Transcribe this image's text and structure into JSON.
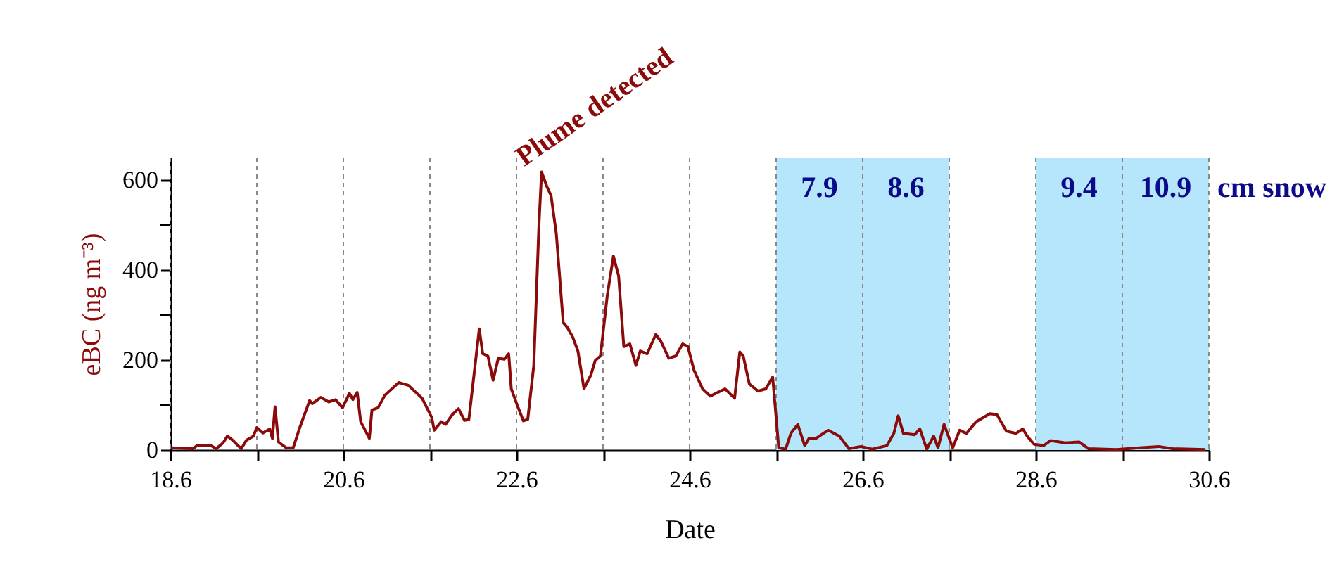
{
  "chart_data": {
    "type": "line",
    "xlabel": "Date",
    "ylabel": "eBC (ng m⁻³)",
    "xlim": [
      18.6,
      30.6
    ],
    "ylim": [
      0,
      650
    ],
    "xticks": [
      18.6,
      {
        "value": 19.6,
        "label": null
      },
      20.6,
      {
        "value": 21.6,
        "label": null
      },
      22.6,
      {
        "value": 23.6,
        "label": null
      },
      24.6,
      {
        "value": 25.6,
        "label": null
      },
      26.6,
      {
        "value": 27.6,
        "label": null
      },
      28.6,
      {
        "value": 29.6,
        "label": null
      },
      30.6
    ],
    "yticks": [
      0,
      {
        "value": 100,
        "label": null
      },
      200,
      {
        "value": 300,
        "label": null
      },
      400,
      {
        "value": 500,
        "label": null
      },
      600
    ],
    "grid": "x",
    "marker": "none",
    "line_style": "solid",
    "series": [
      {
        "color": "#8b0a0a",
        "x": [
          18.61,
          18.86,
          18.91,
          19.07,
          19.13,
          19.21,
          19.26,
          19.32,
          19.42,
          19.48,
          19.56,
          19.6,
          19.67,
          19.75,
          19.78,
          19.81,
          19.85,
          19.94,
          20.02,
          20.1,
          20.21,
          20.24,
          20.34,
          20.43,
          20.51,
          20.59,
          20.67,
          20.71,
          20.76,
          20.8,
          20.9,
          20.93,
          21.0,
          21.08,
          21.24,
          21.35,
          21.51,
          21.62,
          21.65,
          21.73,
          21.78,
          21.86,
          21.93,
          22.0,
          22.05,
          22.17,
          22.21,
          22.27,
          22.33,
          22.39,
          22.46,
          22.51,
          22.54,
          22.62,
          22.68,
          22.73,
          22.8,
          22.86,
          22.89,
          22.95,
          23.0,
          23.06,
          23.14,
          23.19,
          23.25,
          23.31,
          23.38,
          23.46,
          23.51,
          23.57,
          23.65,
          23.72,
          23.78,
          23.84,
          23.91,
          23.98,
          24.03,
          24.11,
          24.21,
          24.27,
          24.36,
          24.44,
          24.52,
          24.58,
          24.65,
          24.75,
          24.84,
          25.01,
          25.12,
          25.18,
          25.22,
          25.29,
          25.39,
          25.48,
          25.56,
          25.63,
          25.71,
          25.77,
          25.85,
          25.93,
          25.98,
          26.06,
          26.2,
          26.33,
          26.44,
          26.58,
          26.71,
          26.88,
          26.96,
          27.01,
          27.07,
          27.2,
          27.26,
          27.34,
          27.42,
          27.47,
          27.54,
          27.64,
          27.72,
          27.8,
          27.91,
          28.07,
          28.15,
          28.26,
          28.37,
          28.45,
          28.5,
          28.58,
          28.69,
          28.77,
          28.94,
          29.1,
          29.21,
          29.53,
          29.8,
          30.02,
          30.18,
          30.56
        ],
        "values": [
          5,
          3,
          10,
          10,
          3,
          16,
          31,
          22,
          3,
          22,
          31,
          50,
          38,
          47,
          26,
          96,
          18,
          5,
          5,
          52,
          110,
          103,
          117,
          107,
          112,
          94,
          126,
          112,
          128,
          63,
          26,
          89,
          94,
          122,
          150,
          144,
          115,
          73,
          44,
          63,
          57,
          79,
          92,
          66,
          68,
          269,
          214,
          209,
          155,
          204,
          202,
          214,
          136,
          94,
          65,
          68,
          188,
          502,
          618,
          586,
          565,
          481,
          283,
          272,
          251,
          220,
          136,
          167,
          199,
          209,
          345,
          431,
          387,
          230,
          236,
          188,
          220,
          214,
          257,
          241,
          204,
          209,
          236,
          230,
          178,
          136,
          120,
          136,
          115,
          218,
          209,
          147,
          131,
          136,
          162,
          5,
          2,
          37,
          57,
          10,
          26,
          26,
          44,
          31,
          3,
          8,
          2,
          10,
          37,
          76,
          37,
          34,
          47,
          2,
          31,
          5,
          57,
          5,
          44,
          37,
          63,
          81,
          79,
          42,
          37,
          47,
          31,
          13,
          10,
          21,
          16,
          18,
          3,
          1,
          5,
          8,
          3,
          1
        ]
      }
    ],
    "bands": [
      {
        "axis": "x",
        "from": 25.6,
        "to": 26.6,
        "label": "7.9",
        "color": "#b6e6fb"
      },
      {
        "axis": "x",
        "from": 26.6,
        "to": 27.6,
        "label": "8.6",
        "color": "#b6e6fb"
      },
      {
        "axis": "x",
        "from": 28.6,
        "to": 29.6,
        "label": "9.4",
        "color": "#b6e6fb"
      },
      {
        "axis": "x",
        "from": 29.6,
        "to": 30.6,
        "label": "10.9",
        "color": "#b6e6fb"
      }
    ],
    "annotations": [
      {
        "text": "Plume detected",
        "x": 22.89,
        "y": 618
      },
      "cm snow"
    ]
  }
}
